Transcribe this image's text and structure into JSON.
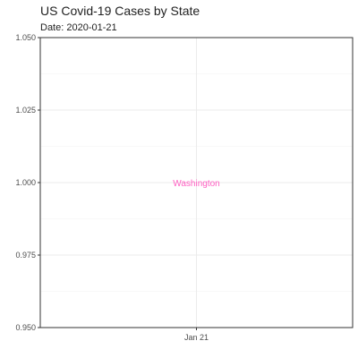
{
  "chart_data": {
    "type": "scatter",
    "title": "US Covid-19 Cases by State",
    "subtitle": "Date: 2020-01-21",
    "xlabel": "",
    "ylabel": "",
    "x_ticks": [
      "Jan 21"
    ],
    "x_values": [
      "2020-01-21"
    ],
    "ylim": [
      0.95,
      1.05
    ],
    "y_ticks": [
      0.95,
      0.975,
      1.0,
      1.025,
      1.05
    ],
    "y_tick_labels": [
      "0.950",
      "0.975",
      "1.000",
      "1.025",
      "1.050"
    ],
    "grid": true,
    "series": [
      {
        "label": "Washington",
        "x": "2020-01-21",
        "y": 1.0,
        "color": "#ff61c3"
      }
    ]
  }
}
